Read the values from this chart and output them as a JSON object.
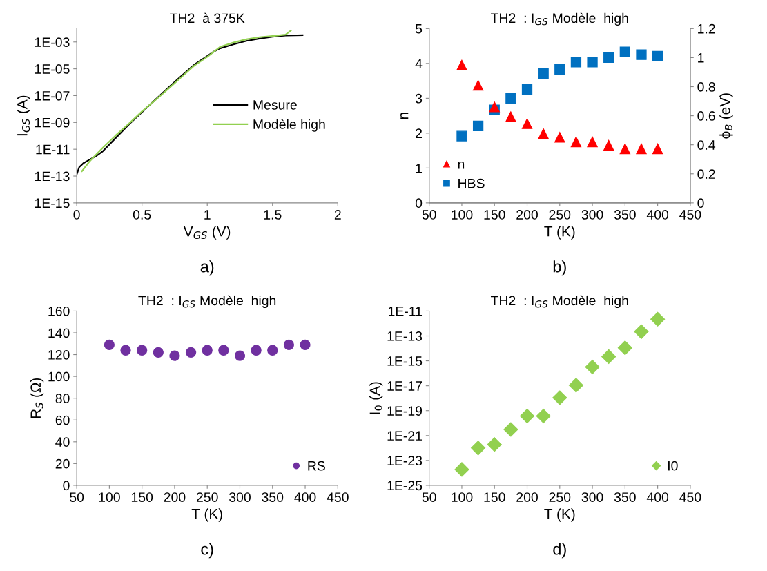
{
  "chart_data": [
    {
      "type": "line",
      "title": "TH2  à 375K",
      "xlabel": "V$_{GS}$ (V)",
      "ylabel": "I$_{GS}$ (A)",
      "log": "y",
      "grid": false,
      "legend": "right",
      "annotations": [
        "a)"
      ],
      "xlim": [
        0,
        2
      ],
      "xticks": [
        0,
        0.5,
        1,
        1.5,
        2
      ],
      "ylim": [
        1e-15,
        0.01
      ],
      "yticks": [
        {
          "value": 1e-15,
          "label": "1E-15"
        },
        {
          "value": 1e-13,
          "label": "1E-13"
        },
        {
          "value": 1e-11,
          "label": "1E-11"
        },
        {
          "value": 1e-09,
          "label": "1E-09"
        },
        {
          "value": 1e-07,
          "label": "1E-07"
        },
        {
          "value": 1e-05,
          "label": "1E-05"
        },
        {
          "value": 0.001,
          "label": "1E-03"
        }
      ],
      "series": [
        {
          "name": "Mesure",
          "color": "#000000",
          "x": [
            0,
            0.02,
            0.05,
            0.1,
            0.15,
            0.2,
            0.3,
            0.4,
            0.5,
            0.6,
            0.7,
            0.8,
            0.9,
            1.0,
            1.05,
            1.1,
            1.2,
            1.3,
            1.4,
            1.5,
            1.6,
            1.73
          ],
          "values": [
            1.35e-13,
            4.7e-13,
            8.9e-13,
            1.7e-12,
            3.2e-12,
            7.1e-12,
            7.1e-11,
            7.1e-10,
            5.8e-09,
            4.7e-08,
            3.8e-07,
            2.8e-06,
            2e-05,
            8.9e-05,
            0.00019,
            0.00034,
            0.00066,
            0.0012,
            0.0018,
            0.0025,
            0.003,
            0.0032
          ]
        },
        {
          "name": "Modèle high",
          "color": "#92d050",
          "x": [
            0.04,
            0.1,
            0.2,
            0.3,
            0.4,
            0.5,
            0.6,
            0.7,
            0.8,
            0.9,
            1.0,
            1.1,
            1.2,
            1.3,
            1.4,
            1.5,
            1.6,
            1.64
          ],
          "values": [
            2.3e-13,
            1.3e-12,
            1.3e-11,
            1.1e-10,
            8.1e-10,
            6.6e-09,
            4.4e-08,
            3.1e-07,
            2.3e-06,
            1.7e-05,
            7.8e-05,
            0.00044,
            0.00091,
            0.0016,
            0.0023,
            0.0028,
            0.0035,
            0.0071
          ]
        }
      ]
    },
    {
      "type": "scatter",
      "title": "TH2  : I$_{GS}$ Modèle  high",
      "xlabel": "T (K)",
      "ylabel": "n",
      "y2label": "ϕ$_{B}$ (eV)",
      "grid": false,
      "legend": "bottom left",
      "annotations": [
        "b)"
      ],
      "x": [
        100,
        125,
        150,
        175,
        200,
        225,
        250,
        275,
        300,
        325,
        350,
        375,
        400
      ],
      "xlim": [
        50,
        450
      ],
      "xticks": [
        50,
        100,
        150,
        200,
        250,
        300,
        350,
        400,
        450
      ],
      "ylim": [
        0,
        5
      ],
      "yticks": [
        0,
        1,
        2,
        3,
        4,
        5
      ],
      "y2lim": [
        0,
        1.2
      ],
      "y2ticks": [
        0,
        0.2,
        0.4,
        0.6,
        0.8,
        1,
        1.2
      ],
      "series": [
        {
          "name": "n",
          "color": "#ff0000",
          "marker": "triangle",
          "values": [
            3.95,
            3.37,
            2.75,
            2.47,
            2.27,
            1.98,
            1.88,
            1.75,
            1.75,
            1.65,
            1.55,
            1.55,
            1.55
          ]
        },
        {
          "name": "HBS",
          "color": "#0070c0",
          "marker": "square",
          "axis": "y2",
          "values": [
            0.46,
            0.53,
            0.64,
            0.72,
            0.78,
            0.89,
            0.92,
            0.97,
            0.97,
            1.0,
            1.04,
            1.02,
            1.01
          ]
        }
      ]
    },
    {
      "type": "scatter",
      "title": "TH2  : I$_{GS}$ Modèle  high",
      "xlabel": "T (K)",
      "ylabel": "R$_{S}$ (Ω)",
      "grid": false,
      "legend": "bottom right",
      "annotations": [
        "c)"
      ],
      "x": [
        100,
        125,
        150,
        175,
        200,
        225,
        250,
        275,
        300,
        325,
        350,
        375,
        400
      ],
      "xlim": [
        50,
        450
      ],
      "xticks": [
        50,
        100,
        150,
        200,
        250,
        300,
        350,
        400,
        450
      ],
      "ylim": [
        0,
        160
      ],
      "yticks": [
        0,
        20,
        40,
        60,
        80,
        100,
        120,
        140,
        160
      ],
      "series": [
        {
          "name": "RS",
          "color": "#7030a0",
          "marker": "circle",
          "values": [
            129,
            124,
            124,
            122,
            119,
            122,
            124,
            124,
            119,
            124,
            124,
            129,
            129
          ]
        }
      ]
    },
    {
      "type": "scatter",
      "title": "TH2  : I$_{GS}$ Modèle  high",
      "xlabel": "T (K)",
      "ylabel": "I$_{0}$ (A)",
      "log": "y",
      "grid": false,
      "legend": "bottom right",
      "annotations": [
        "d)"
      ],
      "x": [
        100,
        125,
        150,
        175,
        200,
        225,
        250,
        275,
        300,
        325,
        350,
        375,
        400
      ],
      "xlim": [
        50,
        450
      ],
      "xticks": [
        50,
        100,
        150,
        200,
        250,
        300,
        350,
        400,
        450
      ],
      "ylim": [
        1e-25,
        1e-11
      ],
      "yticks": [
        {
          "value": 1e-25,
          "label": "1E-25"
        },
        {
          "value": 1e-23,
          "label": "1E-23"
        },
        {
          "value": 1e-21,
          "label": "1E-21"
        },
        {
          "value": 1e-19,
          "label": "1E-19"
        },
        {
          "value": 1e-17,
          "label": "1E-17"
        },
        {
          "value": 1e-15,
          "label": "1E-15"
        },
        {
          "value": 1e-13,
          "label": "1E-13"
        },
        {
          "value": 1e-11,
          "label": "1E-11"
        }
      ],
      "series": [
        {
          "name": "I0",
          "color": "#92d050",
          "marker": "diamond",
          "values": [
            1.9e-24,
            1e-22,
            1.9e-22,
            3.1e-21,
            3.7e-20,
            3.7e-20,
            1.1e-18,
            1.1e-17,
            3.2e-16,
            2.2e-15,
            1.1e-14,
            2.2e-13,
            2.2e-12
          ]
        }
      ]
    }
  ]
}
